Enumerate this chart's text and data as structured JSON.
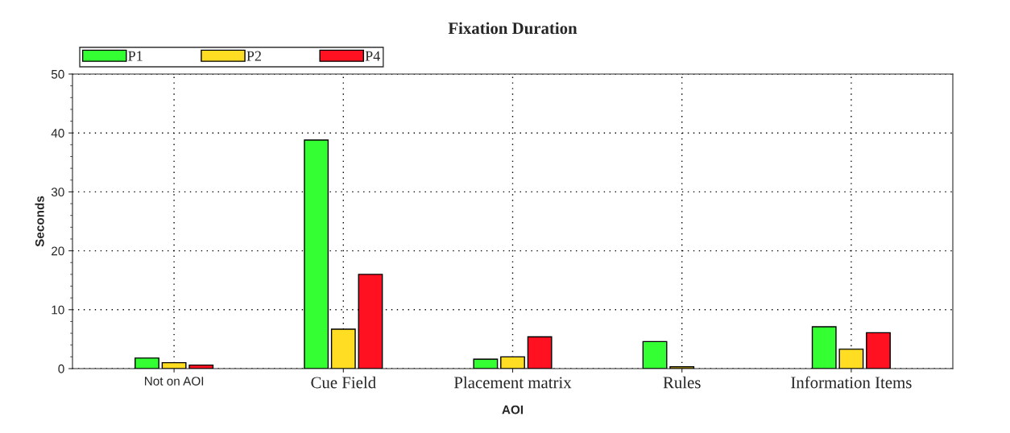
{
  "chart_data": {
    "type": "bar",
    "title": "Fixation Duration",
    "xlabel": "AOI",
    "ylabel": "Seconds",
    "categories": [
      "Not on AOI",
      "Cue Field",
      "Placement matrix",
      "Rules",
      "Information Items"
    ],
    "series": [
      {
        "name": "P1",
        "color": "#33ff33",
        "values": [
          1.8,
          38.8,
          1.6,
          4.6,
          7.1
        ]
      },
      {
        "name": "P2",
        "color": "#ffdd22",
        "values": [
          1.0,
          6.7,
          2.0,
          0.3,
          3.3
        ]
      },
      {
        "name": "P4",
        "color": "#ff1122",
        "values": [
          0.6,
          16.0,
          5.4,
          null,
          6.1
        ]
      }
    ],
    "ylim": [
      0,
      50
    ],
    "yticks": [
      0,
      10,
      20,
      30,
      40,
      50
    ],
    "grid": true,
    "legend": "top left"
  }
}
